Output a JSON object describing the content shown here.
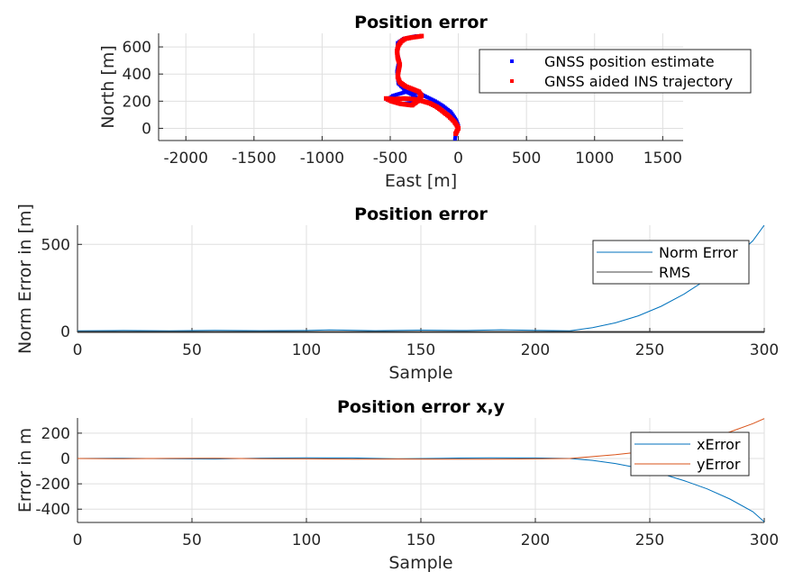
{
  "chart_data": [
    {
      "type": "scatter",
      "title": "Position error",
      "xlabel": "East [m]",
      "ylabel": "North [m]",
      "xlim": [
        -2200,
        1650
      ],
      "ylim": [
        -90,
        700
      ],
      "xticks": [
        -2000,
        -1500,
        -1000,
        -500,
        0,
        500,
        1000,
        1500
      ],
      "yticks": [
        0,
        200,
        400,
        600
      ],
      "grid": true,
      "legend": "top-right",
      "series": [
        {
          "name": "GNSS position estimate",
          "color": "#0000ff",
          "marker": "point",
          "x": [
            -25,
            -20,
            -10,
            -5,
            0,
            -15,
            -55,
            -120,
            -170,
            -230,
            -290,
            -380,
            -480,
            -520,
            -420,
            -320,
            -290,
            -380,
            -440,
            -450,
            -435,
            -450,
            -445,
            -400,
            -310
          ],
          "y": [
            -85,
            -50,
            -25,
            -5,
            20,
            60,
            120,
            170,
            200,
            230,
            260,
            270,
            240,
            210,
            180,
            190,
            220,
            270,
            330,
            420,
            500,
            560,
            630,
            660,
            680
          ]
        },
        {
          "name": "GNSS aided INS trajectory",
          "color": "#ff0000",
          "marker": "point",
          "x": [
            -20,
            -10,
            0,
            -10,
            -30,
            -70,
            -120,
            -160,
            -210,
            -260,
            -300,
            -330,
            -400,
            -470,
            -530,
            -490,
            -420,
            -340,
            -300,
            -270,
            -290,
            -340,
            -390,
            -430,
            -445,
            -440,
            -430,
            -445,
            -450,
            -440,
            -420,
            -390,
            -340,
            -300,
            -270
          ],
          "y": [
            -40,
            -20,
            0,
            20,
            50,
            90,
            130,
            160,
            185,
            200,
            210,
            215,
            220,
            215,
            220,
            200,
            180,
            170,
            200,
            240,
            270,
            290,
            310,
            340,
            380,
            420,
            470,
            520,
            570,
            610,
            640,
            660,
            670,
            675,
            680
          ]
        }
      ]
    },
    {
      "type": "line",
      "title": "Position error",
      "xlabel": "Sample",
      "ylabel": "Norm Error in [m]",
      "xlim": [
        0,
        300
      ],
      "ylim": [
        -5,
        610
      ],
      "xticks": [
        0,
        50,
        100,
        150,
        200,
        250,
        300
      ],
      "yticks": [
        0,
        500
      ],
      "grid": true,
      "legend": "top-right",
      "series": [
        {
          "name": "Norm Error",
          "color": "#0072bd",
          "x": [
            0,
            20,
            40,
            60,
            80,
            100,
            110,
            130,
            150,
            170,
            185,
            200,
            215,
            225,
            235,
            245,
            255,
            265,
            275,
            285,
            295,
            300
          ],
          "y": [
            4,
            6,
            4,
            7,
            5,
            6,
            9,
            5,
            8,
            6,
            10,
            7,
            4,
            22,
            50,
            90,
            145,
            215,
            300,
            400,
            520,
            610
          ]
        },
        {
          "name": "RMS",
          "color": "#444444",
          "x": [
            0,
            300
          ],
          "y": [
            0,
            0
          ]
        }
      ]
    },
    {
      "type": "line",
      "title": "Position error x,y",
      "xlabel": "Sample",
      "ylabel": "Error in m",
      "xlim": [
        0,
        300
      ],
      "ylim": [
        -505,
        320
      ],
      "xticks": [
        0,
        50,
        100,
        150,
        200,
        250,
        300
      ],
      "yticks": [
        -400,
        -200,
        0,
        200
      ],
      "grid": true,
      "legend": "top-right",
      "series": [
        {
          "name": "xError",
          "color": "#0072bd",
          "x": [
            0,
            20,
            40,
            60,
            80,
            100,
            120,
            140,
            160,
            180,
            200,
            215,
            225,
            235,
            245,
            255,
            265,
            275,
            285,
            295,
            300
          ],
          "y": [
            0,
            2,
            -2,
            -4,
            3,
            5,
            4,
            -3,
            2,
            6,
            4,
            0,
            -15,
            -40,
            -75,
            -120,
            -175,
            -240,
            -320,
            -420,
            -500
          ]
        },
        {
          "name": "yError",
          "color": "#d95319",
          "x": [
            0,
            20,
            40,
            60,
            80,
            100,
            120,
            140,
            160,
            180,
            200,
            215,
            225,
            235,
            245,
            255,
            265,
            275,
            285,
            295,
            300
          ],
          "y": [
            0,
            -2,
            1,
            2,
            -2,
            -3,
            -5,
            -4,
            -6,
            -5,
            -3,
            0,
            15,
            30,
            50,
            80,
            115,
            160,
            210,
            275,
            315
          ]
        }
      ]
    }
  ]
}
